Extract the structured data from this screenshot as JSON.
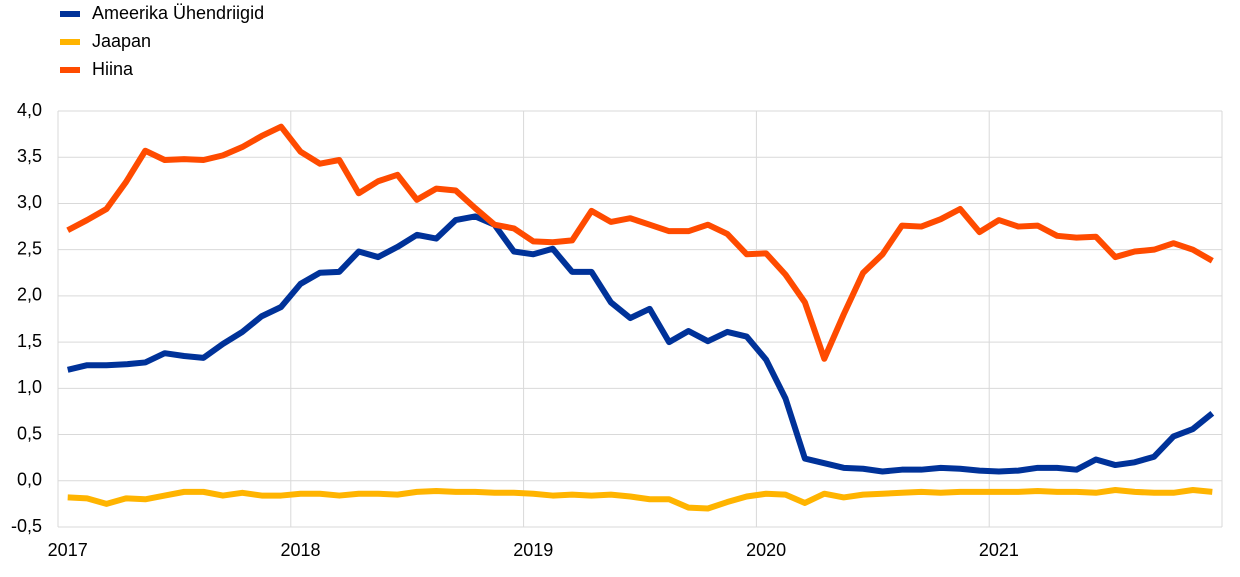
{
  "chart_data": {
    "type": "line",
    "categories": [
      "2017",
      null,
      null,
      null,
      null,
      null,
      null,
      null,
      null,
      null,
      null,
      null,
      "2018",
      null,
      null,
      null,
      null,
      null,
      null,
      null,
      null,
      null,
      null,
      null,
      "2019",
      null,
      null,
      null,
      null,
      null,
      null,
      null,
      null,
      null,
      null,
      null,
      "2020",
      null,
      null,
      null,
      null,
      null,
      null,
      null,
      null,
      null,
      null,
      null,
      "2021",
      null,
      null,
      null,
      null,
      null,
      null,
      null,
      null,
      null,
      null,
      null
    ],
    "series": [
      {
        "name": "Ameerika Ühendriigid",
        "color": "#003299",
        "values": [
          1.2,
          1.25,
          1.25,
          1.26,
          1.28,
          1.38,
          1.35,
          1.33,
          1.48,
          1.61,
          1.78,
          1.88,
          2.13,
          2.25,
          2.26,
          2.48,
          2.42,
          2.53,
          2.66,
          2.62,
          2.82,
          2.86,
          2.77,
          2.48,
          2.45,
          2.51,
          2.26,
          2.26,
          1.93,
          1.76,
          1.86,
          1.5,
          1.62,
          1.51,
          1.61,
          1.56,
          1.31,
          0.89,
          0.24,
          0.19,
          0.14,
          0.13,
          0.1,
          0.12,
          0.12,
          0.14,
          0.13,
          0.11,
          0.1,
          0.11,
          0.14,
          0.14,
          0.12,
          0.23,
          0.17,
          0.2,
          0.26,
          0.48,
          0.56,
          0.73
        ]
      },
      {
        "name": "Jaapan",
        "color": "#ffb400",
        "values": [
          -0.18,
          -0.19,
          -0.25,
          -0.19,
          -0.2,
          -0.16,
          -0.12,
          -0.12,
          -0.16,
          -0.13,
          -0.16,
          -0.16,
          -0.14,
          -0.14,
          -0.16,
          -0.14,
          -0.14,
          -0.15,
          -0.12,
          -0.11,
          -0.12,
          -0.12,
          -0.13,
          -0.13,
          -0.14,
          -0.16,
          -0.15,
          -0.16,
          -0.15,
          -0.17,
          -0.2,
          -0.2,
          -0.29,
          -0.3,
          -0.23,
          -0.17,
          -0.14,
          -0.15,
          -0.24,
          -0.14,
          -0.18,
          -0.15,
          -0.14,
          -0.13,
          -0.12,
          -0.13,
          -0.12,
          -0.12,
          -0.12,
          -0.12,
          -0.11,
          -0.12,
          -0.12,
          -0.13,
          -0.1,
          -0.12,
          -0.13,
          -0.13,
          -0.1,
          -0.12
        ]
      },
      {
        "name": "Hiina",
        "color": "#ff4b00",
        "values": [
          2.71,
          2.82,
          2.94,
          3.23,
          3.57,
          3.47,
          3.48,
          3.47,
          3.52,
          3.61,
          3.73,
          3.83,
          3.56,
          3.43,
          3.47,
          3.11,
          3.24,
          3.31,
          3.04,
          3.16,
          3.14,
          2.95,
          2.77,
          2.73,
          2.59,
          2.58,
          2.6,
          2.92,
          2.8,
          2.84,
          2.77,
          2.7,
          2.7,
          2.77,
          2.67,
          2.45,
          2.46,
          2.23,
          1.93,
          1.32,
          1.8,
          2.25,
          2.45,
          2.76,
          2.75,
          2.83,
          2.94,
          2.69,
          2.82,
          2.75,
          2.76,
          2.65,
          2.63,
          2.64,
          2.42,
          2.48,
          2.5,
          2.57,
          2.5,
          2.38
        ]
      }
    ],
    "ylim": [
      -0.5,
      4.0
    ],
    "yticks": [
      {
        "value": -0.5,
        "label": "-0,5"
      },
      {
        "value": 0,
        "label": "0,0"
      },
      {
        "value": 0.5,
        "label": "0,5"
      },
      {
        "value": 1.0,
        "label": "1,0"
      },
      {
        "value": 1.5,
        "label": "1,5"
      },
      {
        "value": 2.0,
        "label": "2,0"
      },
      {
        "value": 2.5,
        "label": "2,5"
      },
      {
        "value": 3.0,
        "label": "3,0"
      },
      {
        "value": 3.5,
        "label": "3,5"
      },
      {
        "value": 4.0,
        "label": "4,0"
      }
    ],
    "grid": true
  }
}
